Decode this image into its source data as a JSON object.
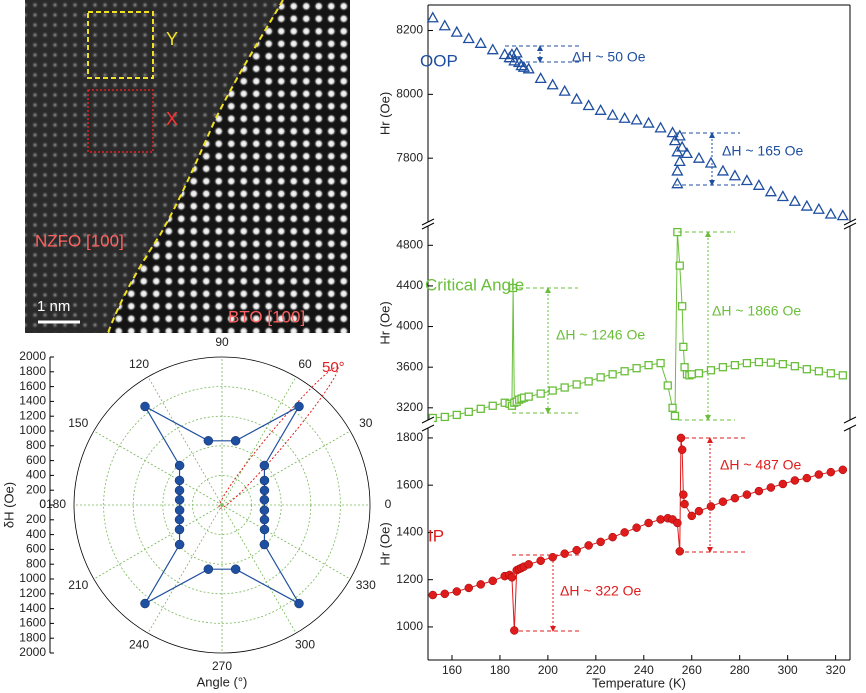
{
  "image": {
    "label_y": "Y",
    "label_x": "X",
    "film": "NZFO [100]",
    "substrate": "BTO [100]",
    "scale": "1 nm"
  },
  "chart_data": [
    {
      "type": "polar",
      "r_label": "δH (Oe)",
      "x_label": "Angle (°)",
      "annotation": "50°",
      "annotation_color": "#e02020",
      "color": "#1f4fa0",
      "rlim": [
        0,
        2000
      ],
      "rticks": [
        0,
        200,
        400,
        600,
        800,
        1000,
        1200,
        1400,
        1600,
        1800,
        2000
      ],
      "thetaticks": [
        0,
        30,
        60,
        90,
        120,
        150,
        180,
        210,
        240,
        270,
        300,
        330
      ],
      "theta": [
        7,
        19,
        30,
        43,
        52,
        78,
        102,
        128,
        137,
        150,
        161,
        173,
        187,
        199,
        210,
        223,
        232,
        258,
        282,
        308,
        317,
        330,
        341,
        353
      ],
      "values": [
        577,
        607,
        663,
        783,
        1690,
        887,
        887,
        1690,
        783,
        663,
        607,
        577,
        577,
        607,
        663,
        783,
        1690,
        887,
        887,
        1690,
        783,
        663,
        607,
        577
      ]
    },
    {
      "type": "line",
      "x_label": "Temperature (K)",
      "xlim": [
        150,
        326
      ],
      "xticks": [
        160,
        180,
        200,
        220,
        240,
        260,
        280,
        300,
        320
      ],
      "series": [
        {
          "name": "OOP",
          "color": "#1f4fa0",
          "marker": "triangle",
          "connected": false,
          "y_label": "Hr (Oe)",
          "ylim": [
            7600,
            8280
          ],
          "yticks": [
            7800,
            8000,
            8200
          ],
          "x": [
            152,
            157,
            162,
            167,
            172,
            177,
            182,
            184,
            185,
            186,
            187,
            188,
            189,
            190,
            192,
            197,
            202,
            207,
            212,
            217,
            222,
            227,
            232,
            237,
            242,
            247,
            252,
            253,
            254,
            254,
            254,
            255,
            255,
            256,
            258,
            263,
            268,
            273,
            278,
            283,
            288,
            293,
            298,
            303,
            308,
            313,
            318,
            323
          ],
          "values": [
            8240,
            8215,
            8195,
            8175,
            8160,
            8140,
            8125,
            8115,
            8125,
            8105,
            8130,
            8100,
            8090,
            8085,
            8080,
            8050,
            8030,
            8010,
            7985,
            7965,
            7950,
            7935,
            7925,
            7920,
            7910,
            7895,
            7880,
            7855,
            7820,
            7760,
            7720,
            7870,
            7790,
            7835,
            7815,
            7800,
            7785,
            7760,
            7745,
            7730,
            7715,
            7695,
            7680,
            7665,
            7650,
            7640,
            7625,
            7620
          ]
        },
        {
          "name": "Critical Angle",
          "color": "#6abf3a",
          "marker": "square",
          "connected": true,
          "y_label": "Hr (Oe)",
          "ylim": [
            3080,
            4990
          ],
          "yticks": [
            3200,
            3600,
            4000,
            4400,
            4800
          ],
          "x": [
            152,
            157,
            162,
            167,
            172,
            177,
            182,
            184,
            185,
            185.5,
            186,
            187,
            188,
            189,
            190,
            192,
            197,
            202,
            207,
            212,
            217,
            222,
            227,
            232,
            237,
            242,
            247,
            250,
            252,
            253,
            254,
            255,
            256,
            256.5,
            257,
            258,
            259,
            260,
            263,
            268,
            273,
            278,
            283,
            288,
            293,
            298,
            303,
            308,
            313,
            318,
            323
          ],
          "values": [
            3100,
            3110,
            3130,
            3160,
            3190,
            3220,
            3250,
            3240,
            3220,
            4380,
            3250,
            3260,
            3280,
            3290,
            3300,
            3310,
            3340,
            3370,
            3400,
            3430,
            3460,
            3500,
            3530,
            3560,
            3590,
            3620,
            3640,
            3420,
            3200,
            3120,
            4930,
            4600,
            4200,
            3800,
            3600,
            3530,
            3520,
            3530,
            3540,
            3570,
            3600,
            3620,
            3640,
            3650,
            3645,
            3630,
            3610,
            3580,
            3560,
            3540,
            3520
          ]
        },
        {
          "name": "IP",
          "color": "#e01b1b",
          "marker": "circle",
          "connected": true,
          "y_label": "Hr (Oe)",
          "ylim": [
            860,
            1842
          ],
          "yticks": [
            1000,
            1200,
            1400,
            1600,
            1800
          ],
          "x": [
            152,
            157,
            162,
            167,
            172,
            177,
            182,
            184,
            185,
            186,
            187,
            188,
            189,
            190,
            192,
            197,
            202,
            207,
            212,
            217,
            222,
            227,
            232,
            237,
            242,
            247,
            250,
            252,
            254,
            255,
            255.5,
            256,
            256.5,
            257,
            260,
            263,
            268,
            273,
            278,
            283,
            288,
            293,
            298,
            303,
            308,
            313,
            318,
            323
          ],
          "values": [
            1135,
            1140,
            1150,
            1165,
            1180,
            1195,
            1215,
            1220,
            1210,
            985,
            1240,
            1245,
            1250,
            1255,
            1265,
            1280,
            1295,
            1310,
            1325,
            1345,
            1360,
            1380,
            1400,
            1420,
            1440,
            1455,
            1460,
            1455,
            1440,
            1320,
            1800,
            1750,
            1560,
            1520,
            1470,
            1490,
            1510,
            1530,
            1545,
            1560,
            1575,
            1590,
            1605,
            1620,
            1630,
            1645,
            1655,
            1665
          ]
        }
      ],
      "annotations": [
        {
          "text": "ΔH ~ 50 Oe",
          "color": "#1f4fa0"
        },
        {
          "text": "ΔH ~ 165 Oe",
          "color": "#1f4fa0"
        },
        {
          "text": "ΔH ~ 1246 Oe",
          "color": "#6abf3a"
        },
        {
          "text": "ΔH ~ 1866 Oe",
          "color": "#6abf3a"
        },
        {
          "text": "ΔH ~ 487 Oe",
          "color": "#e01b1b"
        },
        {
          "text": "ΔH ~ 322 Oe",
          "color": "#e01b1b"
        }
      ]
    }
  ]
}
